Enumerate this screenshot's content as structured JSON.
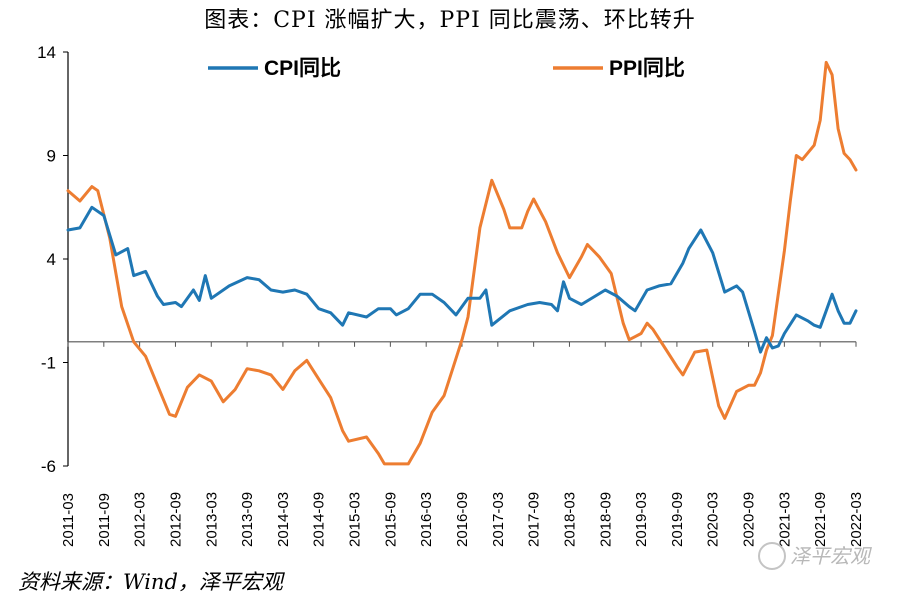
{
  "title": "图表：CPI 涨幅扩大，PPI 同比震荡、环比转升",
  "source": "资料来源：Wind，泽平宏观",
  "watermark": "泽平宏观",
  "colors": {
    "cpi": "#1f77b4",
    "ppi": "#ed7d31",
    "axis": "#000000"
  },
  "chart_data": {
    "type": "line",
    "title": "图表：CPI 涨幅扩大，PPI 同比震荡、环比转升",
    "xlabel": "",
    "ylabel": "",
    "ylim": [
      -6,
      14
    ],
    "yticks": [
      14,
      9,
      4,
      -1,
      -6
    ],
    "xlim": [
      "2011-03",
      "2022-03"
    ],
    "xticks": [
      "2011-03",
      "2011-09",
      "2012-03",
      "2012-09",
      "2013-03",
      "2013-09",
      "2014-03",
      "2014-09",
      "2015-03",
      "2015-09",
      "2016-03",
      "2016-09",
      "2017-03",
      "2017-09",
      "2018-03",
      "2018-09",
      "2019-03",
      "2019-09",
      "2020-03",
      "2020-09",
      "2021-03",
      "2021-09",
      "2022-03"
    ],
    "grid": false,
    "legend_position": "top",
    "series": [
      {
        "name": "CPI同比",
        "points": [
          [
            "2011-03",
            5.4
          ],
          [
            "2011-05",
            5.5
          ],
          [
            "2011-07",
            6.5
          ],
          [
            "2011-09",
            6.1
          ],
          [
            "2011-11",
            4.2
          ],
          [
            "2012-01",
            4.5
          ],
          [
            "2012-02",
            3.2
          ],
          [
            "2012-04",
            3.4
          ],
          [
            "2012-06",
            2.2
          ],
          [
            "2012-07",
            1.8
          ],
          [
            "2012-09",
            1.9
          ],
          [
            "2012-10",
            1.7
          ],
          [
            "2012-12",
            2.5
          ],
          [
            "2013-01",
            2.0
          ],
          [
            "2013-02",
            3.2
          ],
          [
            "2013-03",
            2.1
          ],
          [
            "2013-06",
            2.7
          ],
          [
            "2013-09",
            3.1
          ],
          [
            "2013-11",
            3.0
          ],
          [
            "2014-01",
            2.5
          ],
          [
            "2014-03",
            2.4
          ],
          [
            "2014-05",
            2.5
          ],
          [
            "2014-07",
            2.3
          ],
          [
            "2014-09",
            1.6
          ],
          [
            "2014-11",
            1.4
          ],
          [
            "2015-01",
            0.8
          ],
          [
            "2015-02",
            1.4
          ],
          [
            "2015-05",
            1.2
          ],
          [
            "2015-07",
            1.6
          ],
          [
            "2015-09",
            1.6
          ],
          [
            "2015-10",
            1.3
          ],
          [
            "2015-12",
            1.6
          ],
          [
            "2016-02",
            2.3
          ],
          [
            "2016-04",
            2.3
          ],
          [
            "2016-06",
            1.9
          ],
          [
            "2016-08",
            1.3
          ],
          [
            "2016-10",
            2.1
          ],
          [
            "2016-12",
            2.1
          ],
          [
            "2017-01",
            2.5
          ],
          [
            "2017-02",
            0.8
          ],
          [
            "2017-05",
            1.5
          ],
          [
            "2017-08",
            1.8
          ],
          [
            "2017-10",
            1.9
          ],
          [
            "2017-12",
            1.8
          ],
          [
            "2018-01",
            1.5
          ],
          [
            "2018-02",
            2.9
          ],
          [
            "2018-03",
            2.1
          ],
          [
            "2018-05",
            1.8
          ],
          [
            "2018-09",
            2.5
          ],
          [
            "2018-11",
            2.2
          ],
          [
            "2019-01",
            1.7
          ],
          [
            "2019-02",
            1.5
          ],
          [
            "2019-04",
            2.5
          ],
          [
            "2019-06",
            2.7
          ],
          [
            "2019-08",
            2.8
          ],
          [
            "2019-10",
            3.8
          ],
          [
            "2019-11",
            4.5
          ],
          [
            "2020-01",
            5.4
          ],
          [
            "2020-03",
            4.3
          ],
          [
            "2020-05",
            2.4
          ],
          [
            "2020-07",
            2.7
          ],
          [
            "2020-08",
            2.4
          ],
          [
            "2020-10",
            0.5
          ],
          [
            "2020-11",
            -0.5
          ],
          [
            "2020-12",
            0.2
          ],
          [
            "2021-01",
            -0.3
          ],
          [
            "2021-02",
            -0.2
          ],
          [
            "2021-03",
            0.4
          ],
          [
            "2021-05",
            1.3
          ],
          [
            "2021-07",
            1.0
          ],
          [
            "2021-08",
            0.8
          ],
          [
            "2021-09",
            0.7
          ],
          [
            "2021-10",
            1.5
          ],
          [
            "2021-11",
            2.3
          ],
          [
            "2021-12",
            1.5
          ],
          [
            "2022-01",
            0.9
          ],
          [
            "2022-02",
            0.9
          ],
          [
            "2022-03",
            1.5
          ]
        ]
      },
      {
        "name": "PPI同比",
        "points": [
          [
            "2011-03",
            7.3
          ],
          [
            "2011-05",
            6.8
          ],
          [
            "2011-07",
            7.5
          ],
          [
            "2011-08",
            7.3
          ],
          [
            "2011-10",
            5.0
          ],
          [
            "2011-12",
            1.7
          ],
          [
            "2012-02",
            0.0
          ],
          [
            "2012-04",
            -0.7
          ],
          [
            "2012-06",
            -2.1
          ],
          [
            "2012-08",
            -3.5
          ],
          [
            "2012-09",
            -3.6
          ],
          [
            "2012-11",
            -2.2
          ],
          [
            "2013-01",
            -1.6
          ],
          [
            "2013-03",
            -1.9
          ],
          [
            "2013-05",
            -2.9
          ],
          [
            "2013-07",
            -2.3
          ],
          [
            "2013-09",
            -1.3
          ],
          [
            "2013-11",
            -1.4
          ],
          [
            "2014-01",
            -1.6
          ],
          [
            "2014-03",
            -2.3
          ],
          [
            "2014-05",
            -1.4
          ],
          [
            "2014-07",
            -0.9
          ],
          [
            "2014-09",
            -1.8
          ],
          [
            "2014-11",
            -2.7
          ],
          [
            "2015-01",
            -4.3
          ],
          [
            "2015-02",
            -4.8
          ],
          [
            "2015-05",
            -4.6
          ],
          [
            "2015-07",
            -5.4
          ],
          [
            "2015-08",
            -5.9
          ],
          [
            "2015-10",
            -5.9
          ],
          [
            "2015-12",
            -5.9
          ],
          [
            "2016-02",
            -4.9
          ],
          [
            "2016-04",
            -3.4
          ],
          [
            "2016-06",
            -2.6
          ],
          [
            "2016-08",
            -0.8
          ],
          [
            "2016-09",
            0.1
          ],
          [
            "2016-10",
            1.2
          ],
          [
            "2016-12",
            5.5
          ],
          [
            "2017-02",
            7.8
          ],
          [
            "2017-04",
            6.4
          ],
          [
            "2017-05",
            5.5
          ],
          [
            "2017-07",
            5.5
          ],
          [
            "2017-08",
            6.3
          ],
          [
            "2017-09",
            6.9
          ],
          [
            "2017-11",
            5.8
          ],
          [
            "2018-01",
            4.3
          ],
          [
            "2018-03",
            3.1
          ],
          [
            "2018-05",
            4.1
          ],
          [
            "2018-06",
            4.7
          ],
          [
            "2018-08",
            4.1
          ],
          [
            "2018-10",
            3.3
          ],
          [
            "2018-12",
            0.9
          ],
          [
            "2019-01",
            0.1
          ],
          [
            "2019-03",
            0.4
          ],
          [
            "2019-04",
            0.9
          ],
          [
            "2019-05",
            0.6
          ],
          [
            "2019-07",
            -0.3
          ],
          [
            "2019-09",
            -1.2
          ],
          [
            "2019-10",
            -1.6
          ],
          [
            "2019-12",
            -0.5
          ],
          [
            "2020-02",
            -0.4
          ],
          [
            "2020-04",
            -3.1
          ],
          [
            "2020-05",
            -3.7
          ],
          [
            "2020-07",
            -2.4
          ],
          [
            "2020-09",
            -2.1
          ],
          [
            "2020-10",
            -2.1
          ],
          [
            "2020-11",
            -1.5
          ],
          [
            "2020-12",
            -0.4
          ],
          [
            "2021-01",
            0.3
          ],
          [
            "2021-03",
            4.4
          ],
          [
            "2021-04",
            6.8
          ],
          [
            "2021-05",
            9.0
          ],
          [
            "2021-06",
            8.8
          ],
          [
            "2021-08",
            9.5
          ],
          [
            "2021-09",
            10.7
          ],
          [
            "2021-10",
            13.5
          ],
          [
            "2021-11",
            12.9
          ],
          [
            "2021-12",
            10.3
          ],
          [
            "2022-01",
            9.1
          ],
          [
            "2022-02",
            8.8
          ],
          [
            "2022-03",
            8.3
          ]
        ]
      }
    ]
  }
}
